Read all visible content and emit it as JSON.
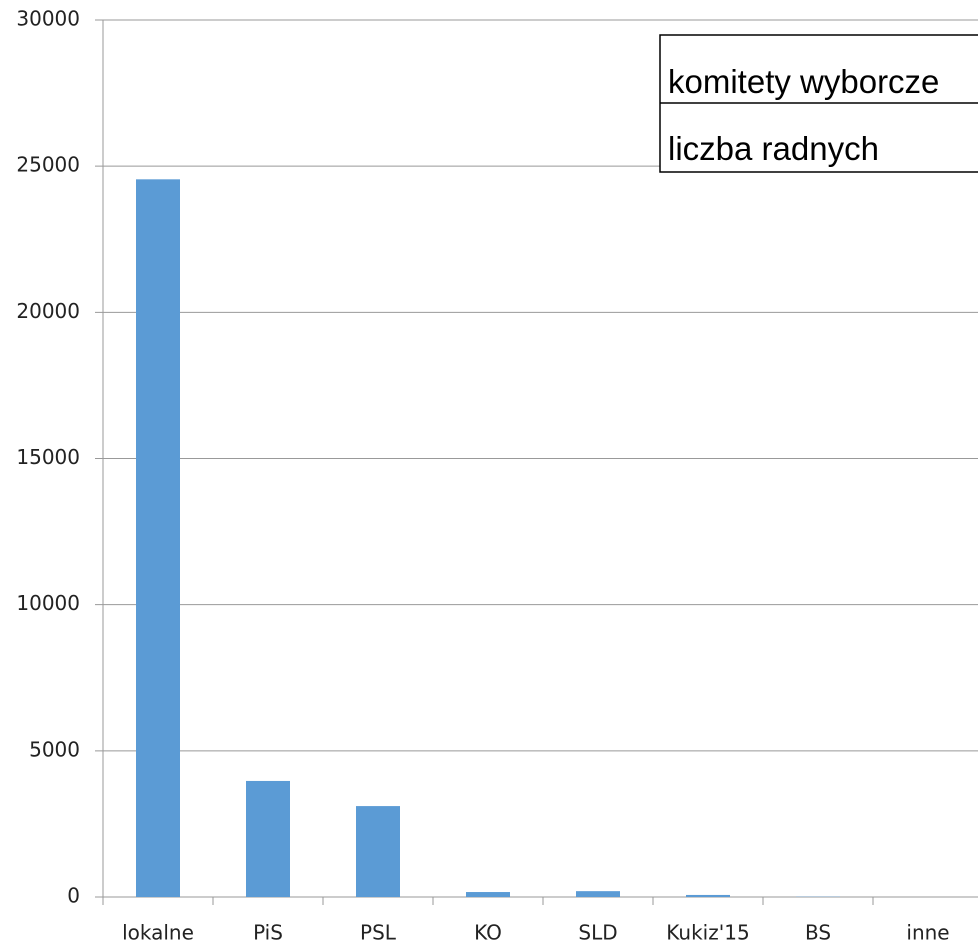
{
  "chart_data": {
    "type": "bar",
    "categories": [
      "lokalne",
      "PiS",
      "PSL",
      "KO",
      "SLD",
      "Kukiz'15",
      "BS",
      "inne"
    ],
    "values": [
      24550,
      3970,
      3110,
      170,
      200,
      70,
      10,
      0
    ],
    "color": "#5b9bd5",
    "ylim": [
      0,
      30000
    ],
    "yticks": [
      0,
      5000,
      10000,
      15000,
      20000,
      25000,
      30000
    ],
    "grid": true,
    "annotations": [
      "komitety wyborcze",
      "liczba radnych"
    ]
  }
}
